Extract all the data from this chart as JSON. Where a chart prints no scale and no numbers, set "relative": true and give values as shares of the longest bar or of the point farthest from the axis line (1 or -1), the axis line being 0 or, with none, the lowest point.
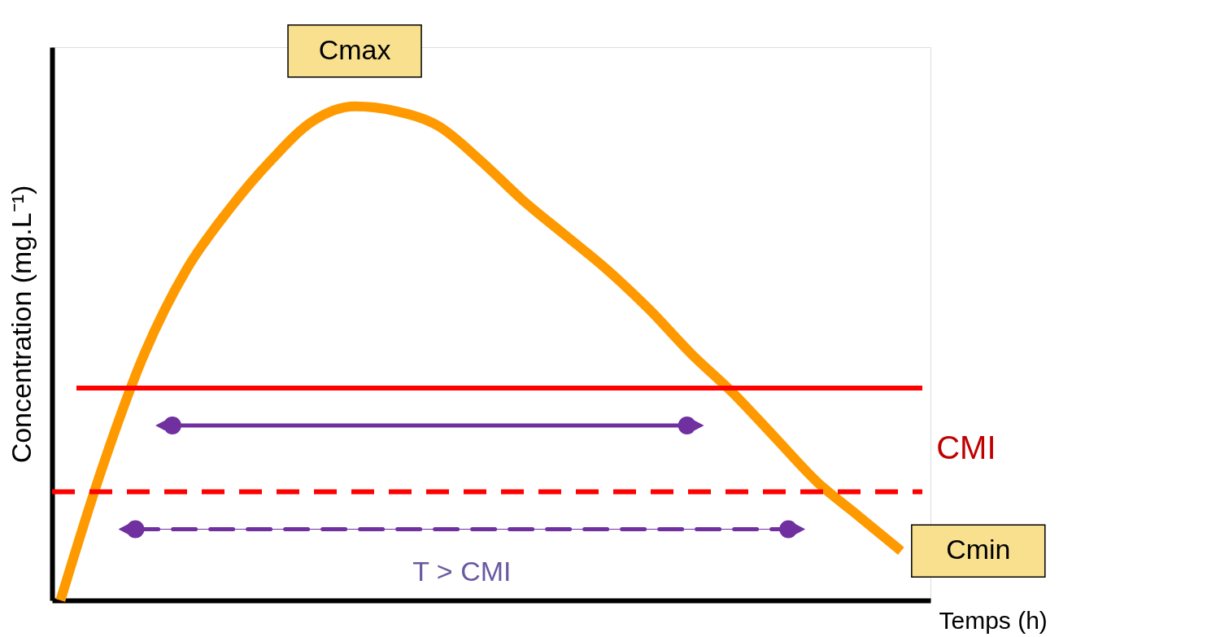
{
  "chart_data": {
    "type": "line",
    "relative": true,
    "xlabel": "Temps (h)",
    "ylabel": "Concentration (mg.L⁻¹)",
    "categories": [
      null,
      null,
      null,
      null,
      null,
      null,
      null,
      null,
      null,
      null,
      null,
      null,
      null,
      null,
      null,
      null,
      null,
      null,
      null,
      null,
      null
    ],
    "values": [
      0,
      0.27,
      0.5,
      0.67,
      0.79,
      0.89,
      0.97,
      1,
      0.99,
      0.96,
      0.89,
      0.81,
      0.74,
      0.67,
      0.59,
      0.5,
      0.42,
      0.33,
      0.24,
      0.17,
      0.1
    ],
    "color": "#ff9900",
    "line_style": "solid",
    "ref_lines": [
      {
        "axis": "y",
        "value": 0.43,
        "label": "CMI",
        "color": "#ff0000",
        "line_style": "solid"
      },
      {
        "axis": "y",
        "value": 0.22,
        "color": "#ff0000",
        "line_style": "dashed"
      }
    ],
    "annotations": [
      "Cmax",
      "Cmin",
      "T > CMI"
    ],
    "grid": false,
    "tick_labels": false
  }
}
